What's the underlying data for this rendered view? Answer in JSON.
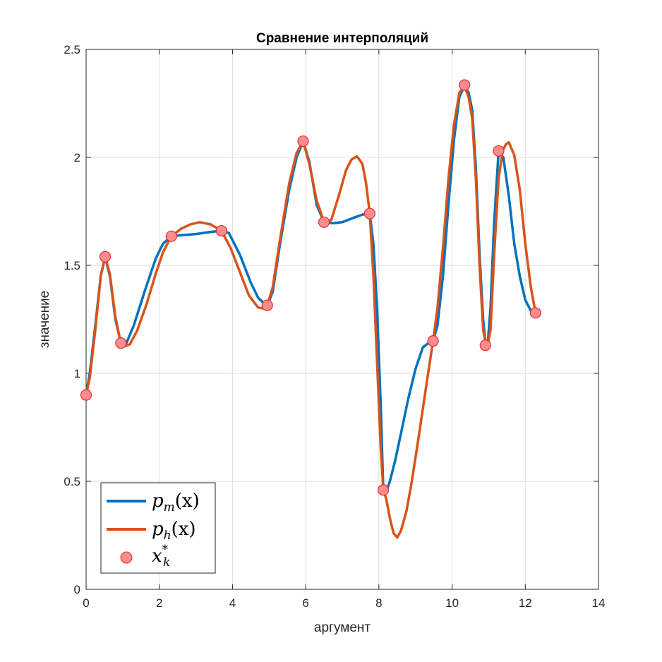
{
  "chart_data": {
    "type": "line",
    "title": "Сравнение интерполяций",
    "xlabel": "аргумент",
    "ylabel": "значение",
    "xlim": [
      0,
      14
    ],
    "ylim": [
      0,
      2.5
    ],
    "xticks": [
      "0",
      "2",
      "4",
      "6",
      "8",
      "10",
      "12",
      "14"
    ],
    "yticks": [
      "0",
      "0.5",
      "1",
      "1.5",
      "2",
      "2.5"
    ],
    "grid": true,
    "legend_position": "bottom-left",
    "series": [
      {
        "name": "p_m(x)",
        "legend_main": "p",
        "legend_sub": "m",
        "legend_arg": "(x)",
        "color": "#0072BD",
        "x": [
          0,
          0.1,
          0.25,
          0.4,
          0.52,
          0.65,
          0.8,
          0.95,
          1.1,
          1.3,
          1.6,
          1.9,
          2.1,
          2.33,
          2.6,
          3.0,
          3.4,
          3.7,
          3.9,
          4.2,
          4.5,
          4.7,
          4.95,
          5.1,
          5.3,
          5.55,
          5.75,
          5.93,
          6.1,
          6.3,
          6.5,
          6.75,
          7.0,
          7.3,
          7.55,
          7.75,
          7.85,
          7.95,
          8.05,
          8.12,
          8.2,
          8.3,
          8.45,
          8.6,
          8.8,
          9.0,
          9.2,
          9.35,
          9.48,
          9.6,
          9.75,
          9.9,
          10.05,
          10.2,
          10.34,
          10.45,
          10.55,
          10.65,
          10.75,
          10.85,
          10.91,
          10.97,
          11.05,
          11.15,
          11.27,
          11.4,
          11.55,
          11.7,
          11.85,
          12.0,
          12.15,
          12.28
        ],
        "y": [
          0.9,
          1.0,
          1.22,
          1.45,
          1.54,
          1.45,
          1.25,
          1.14,
          1.14,
          1.22,
          1.38,
          1.53,
          1.6,
          1.635,
          1.64,
          1.645,
          1.655,
          1.66,
          1.65,
          1.55,
          1.42,
          1.35,
          1.31,
          1.38,
          1.6,
          1.85,
          2.0,
          2.075,
          1.98,
          1.78,
          1.7,
          1.695,
          1.7,
          1.72,
          1.735,
          1.74,
          1.6,
          1.3,
          0.85,
          0.46,
          0.45,
          0.5,
          0.6,
          0.72,
          0.88,
          1.02,
          1.12,
          1.14,
          1.15,
          1.22,
          1.45,
          1.78,
          2.08,
          2.28,
          2.33,
          2.3,
          2.22,
          1.95,
          1.55,
          1.25,
          1.14,
          1.13,
          1.3,
          1.7,
          2.025,
          2.0,
          1.82,
          1.6,
          1.45,
          1.34,
          1.29,
          1.28
        ]
      },
      {
        "name": "p_h(x)",
        "legend_main": "p",
        "legend_sub": "h",
        "legend_arg": "(x)",
        "color": "#D95319",
        "x": [
          0,
          0.1,
          0.25,
          0.4,
          0.52,
          0.65,
          0.8,
          0.95,
          1.05,
          1.2,
          1.4,
          1.65,
          1.9,
          2.1,
          2.33,
          2.6,
          2.85,
          3.1,
          3.4,
          3.7,
          3.95,
          4.2,
          4.45,
          4.7,
          4.85,
          4.95,
          5.1,
          5.3,
          5.55,
          5.75,
          5.93,
          6.1,
          6.3,
          6.5,
          6.7,
          6.9,
          7.1,
          7.25,
          7.4,
          7.55,
          7.65,
          7.75,
          7.85,
          7.95,
          8.05,
          8.12,
          8.2,
          8.3,
          8.4,
          8.5,
          8.6,
          8.75,
          8.9,
          9.1,
          9.3,
          9.48,
          9.6,
          9.75,
          9.9,
          10.05,
          10.2,
          10.34,
          10.45,
          10.55,
          10.65,
          10.75,
          10.85,
          10.91,
          10.97,
          11.05,
          11.15,
          11.27,
          11.38,
          11.47,
          11.55,
          11.7,
          11.85,
          12.0,
          12.15,
          12.28
        ],
        "y": [
          0.9,
          0.98,
          1.2,
          1.45,
          1.54,
          1.46,
          1.26,
          1.14,
          1.125,
          1.135,
          1.2,
          1.32,
          1.46,
          1.56,
          1.635,
          1.67,
          1.69,
          1.7,
          1.69,
          1.66,
          1.58,
          1.47,
          1.36,
          1.305,
          1.3,
          1.315,
          1.4,
          1.62,
          1.88,
          2.02,
          2.075,
          1.97,
          1.8,
          1.7,
          1.71,
          1.82,
          1.94,
          1.99,
          2.005,
          1.97,
          1.88,
          1.74,
          1.45,
          1.05,
          0.65,
          0.46,
          0.42,
          0.33,
          0.26,
          0.24,
          0.27,
          0.36,
          0.5,
          0.72,
          0.95,
          1.15,
          1.3,
          1.58,
          1.9,
          2.15,
          2.3,
          2.33,
          2.28,
          2.18,
          1.9,
          1.5,
          1.2,
          1.15,
          1.13,
          1.2,
          1.55,
          1.9,
          2.03,
          2.06,
          2.07,
          2.01,
          1.85,
          1.6,
          1.4,
          1.28
        ]
      }
    ],
    "points": {
      "name": "x_k^*",
      "legend_main": "x",
      "legend_sub": "k",
      "legend_sup": "*",
      "face_color": "#FF8C8C",
      "edge_color": "#E03030",
      "x": [
        0,
        0.52,
        0.95,
        2.33,
        3.7,
        4.95,
        5.93,
        6.5,
        7.75,
        8.12,
        9.48,
        10.34,
        10.91,
        11.27,
        12.28
      ],
      "y": [
        0.9,
        1.54,
        1.14,
        1.635,
        1.66,
        1.315,
        2.075,
        1.7,
        1.74,
        0.46,
        1.15,
        2.335,
        1.13,
        2.03,
        1.28
      ]
    }
  }
}
